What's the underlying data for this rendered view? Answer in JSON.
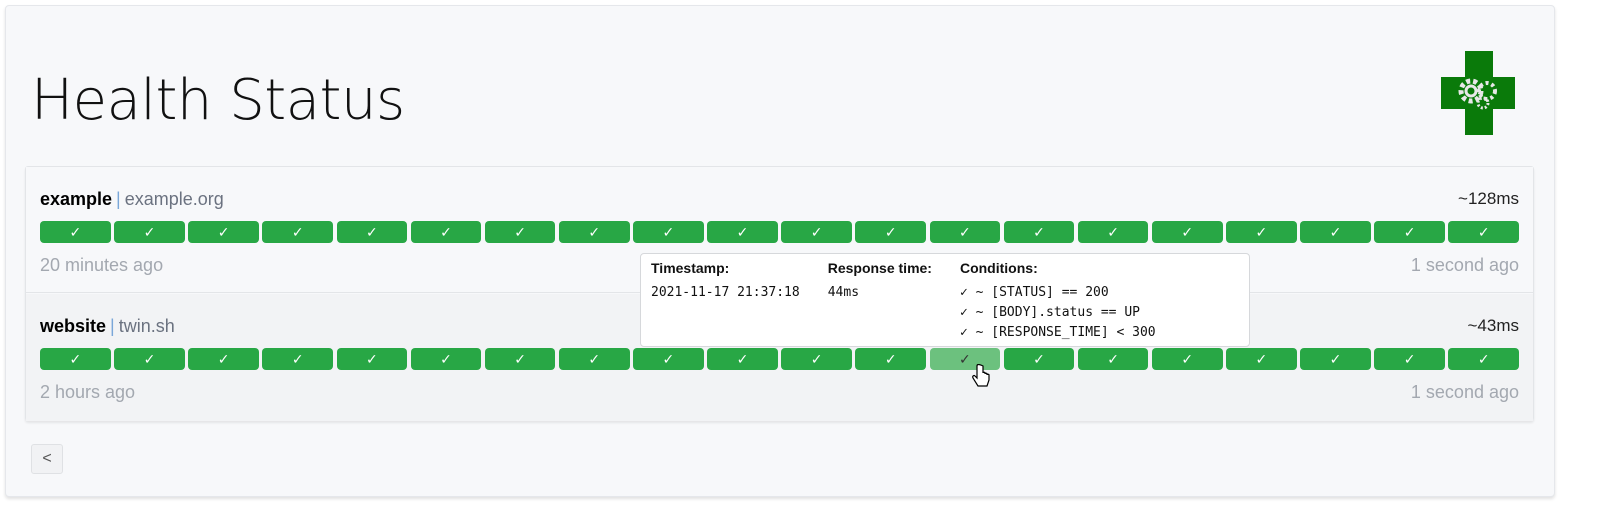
{
  "header": {
    "title": "Health Status",
    "logo": "health-gears-logo"
  },
  "colors": {
    "success": "#28a745",
    "hover": "#6cc17e"
  },
  "services": [
    {
      "name": "example",
      "hostname": "example.org",
      "avg_response": "~128ms",
      "oldest": "20 minutes ago",
      "newest": "1 second ago",
      "results": [
        true,
        true,
        true,
        true,
        true,
        true,
        true,
        true,
        true,
        true,
        true,
        true,
        true,
        true,
        true,
        true,
        true,
        true,
        true,
        true
      ]
    },
    {
      "name": "website",
      "hostname": "twin.sh",
      "avg_response": "~43ms",
      "oldest": "2 hours ago",
      "newest": "1 second ago",
      "results": [
        true,
        true,
        true,
        true,
        true,
        true,
        true,
        true,
        true,
        true,
        true,
        true,
        true,
        true,
        true,
        true,
        true,
        true,
        true,
        true
      ],
      "hovered_result_index": 12
    }
  ],
  "check_symbol": "✓",
  "tooltip": {
    "timestamp_label": "Timestamp:",
    "timestamp": "2021-11-17 21:37:18",
    "response_label": "Response time:",
    "response": "44ms",
    "conditions_label": "Conditions:",
    "conditions": [
      "✓ ~ [STATUS] == 200",
      "✓ ~ [BODY].status == UP",
      "✓ ~ [RESPONSE_TIME] < 300"
    ]
  },
  "pagination": {
    "prev_label": "<"
  }
}
